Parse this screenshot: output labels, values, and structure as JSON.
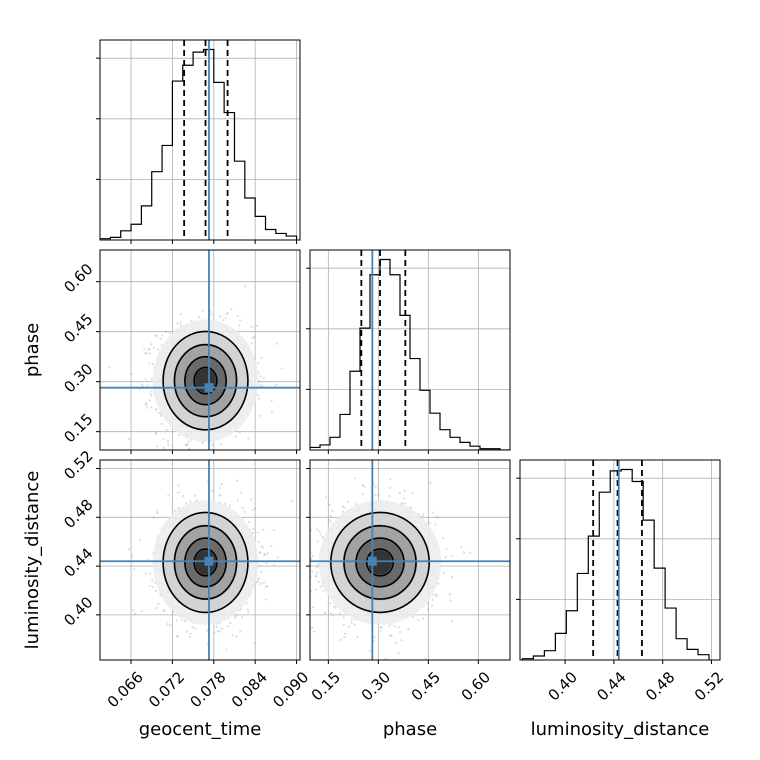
{
  "chart_data": {
    "type": "corner",
    "parameters": [
      "geocent_time",
      "phase",
      "luminosity_distance"
    ],
    "axis_labels": {
      "geocent_time": "geocent_time",
      "phase": "phase",
      "luminosity_distance": "luminosity_distance"
    },
    "ranges": {
      "geocent_time": [
        0.0615,
        0.0905
      ],
      "phase": [
        0.095,
        0.695
      ],
      "luminosity_distance": [
        0.363,
        0.527
      ]
    },
    "ticks": {
      "geocent_time": [
        0.066,
        0.072,
        0.078,
        0.084,
        0.09
      ],
      "phase": [
        0.15,
        0.3,
        0.45,
        0.6
      ],
      "luminosity_distance": [
        0.4,
        0.44,
        0.48,
        0.52
      ]
    },
    "tick_labels": {
      "geocent_time": [
        "0.066",
        "0.072",
        "0.078",
        "0.084",
        "0.090"
      ],
      "phase": [
        "0.15",
        "0.30",
        "0.45",
        "0.60"
      ],
      "luminosity_distance": [
        "0.40",
        "0.44",
        "0.48",
        "0.52"
      ]
    },
    "truths": {
      "geocent_time": 0.0773,
      "phase": 0.282,
      "luminosity_distance": 0.444
    },
    "quantiles": {
      "geocent_time": [
        0.0737,
        0.0768,
        0.08
      ],
      "phase": [
        0.249,
        0.305,
        0.381
      ],
      "luminosity_distance": [
        0.423,
        0.443,
        0.463
      ]
    },
    "histograms": {
      "geocent_time": {
        "edges": [
          0.0615,
          0.063,
          0.0645,
          0.066,
          0.0675,
          0.069,
          0.0705,
          0.072,
          0.0735,
          0.075,
          0.0765,
          0.078,
          0.0795,
          0.081,
          0.0825,
          0.084,
          0.0855,
          0.087,
          0.0885,
          0.09
        ],
        "counts": [
          1,
          2,
          7,
          12,
          26,
          52,
          72,
          121,
          133,
          143,
          145,
          120,
          97,
          60,
          32,
          18,
          8,
          5,
          3
        ]
      },
      "phase": {
        "edges": [
          0.095,
          0.125,
          0.155,
          0.185,
          0.215,
          0.245,
          0.275,
          0.305,
          0.335,
          0.365,
          0.395,
          0.425,
          0.455,
          0.485,
          0.515,
          0.545,
          0.575,
          0.605,
          0.635,
          0.665,
          0.695
        ],
        "counts": [
          2,
          4,
          10,
          28,
          62,
          96,
          138,
          150,
          138,
          106,
          72,
          47,
          29,
          16,
          10,
          6,
          3,
          1,
          1,
          0
        ]
      },
      "luminosity_distance": {
        "edges": [
          0.365,
          0.374,
          0.383,
          0.392,
          0.401,
          0.41,
          0.419,
          0.428,
          0.437,
          0.446,
          0.455,
          0.464,
          0.473,
          0.482,
          0.491,
          0.5,
          0.509,
          0.518
        ],
        "counts": [
          1,
          3,
          7,
          20,
          37,
          65,
          93,
          126,
          142,
          143,
          134,
          105,
          69,
          39,
          16,
          8,
          4
        ]
      }
    },
    "pairs": [
      {
        "x": "geocent_time",
        "y": "phase",
        "center": [
          0.0768,
          0.303
        ],
        "sigma": [
          0.003,
          0.072
        ]
      },
      {
        "x": "geocent_time",
        "y": "luminosity_distance",
        "center": [
          0.0768,
          0.443
        ],
        "sigma": [
          0.003,
          0.02
        ]
      },
      {
        "x": "phase",
        "y": "luminosity_distance",
        "center": [
          0.305,
          0.443
        ],
        "sigma": [
          0.072,
          0.02
        ]
      }
    ],
    "colors": {
      "hist": "#000000",
      "truth": "#4682b4",
      "grid": "#b0b0b0",
      "scatter": "#9a9a9a"
    },
    "grid": true
  }
}
